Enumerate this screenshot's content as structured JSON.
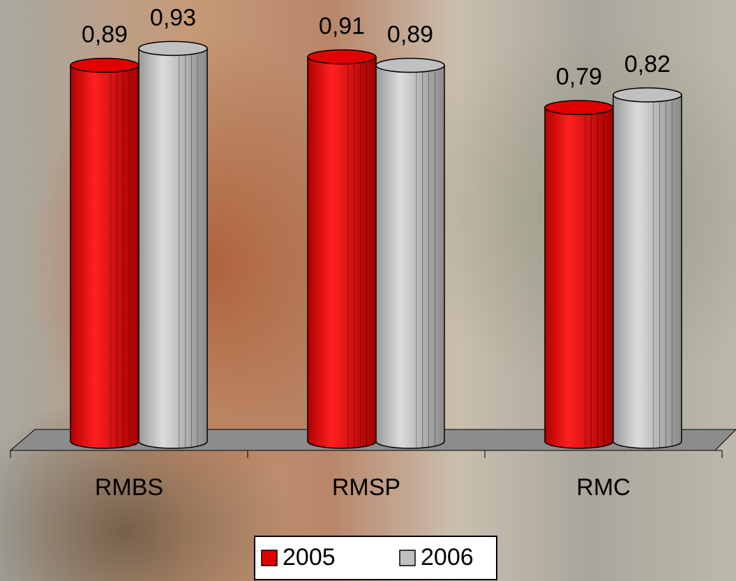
{
  "chart_data": {
    "type": "bar",
    "style": "cylinder-3d",
    "categories": [
      "RMBS",
      "RMSP",
      "RMC"
    ],
    "series": [
      {
        "name": "2005",
        "color": "#e00000",
        "values": [
          0.89,
          0.91,
          0.79
        ],
        "value_labels": [
          "0,89",
          "0,91",
          "0,79"
        ]
      },
      {
        "name": "2006",
        "color": "#c0c0c0",
        "values": [
          0.93,
          0.89,
          0.82
        ],
        "value_labels": [
          "0,93",
          "0,89",
          "0,82"
        ]
      }
    ],
    "legend": "bottom"
  }
}
